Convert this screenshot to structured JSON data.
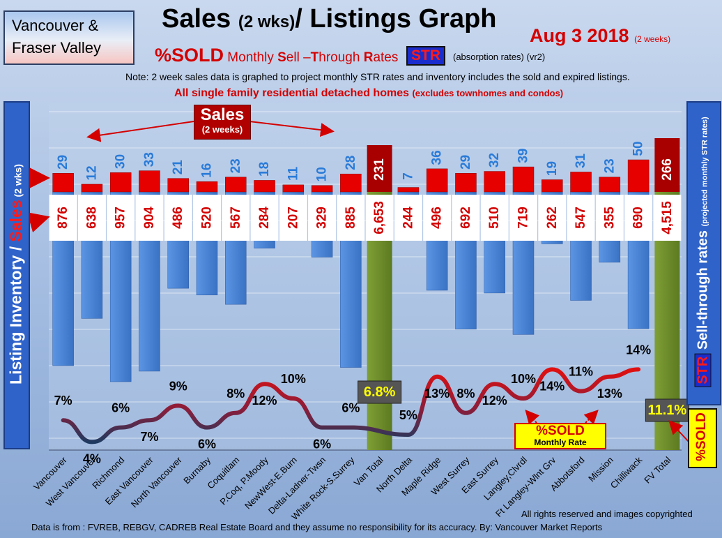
{
  "header": {
    "region_line1": "Vancouver &",
    "region_line2": "Fraser Valley",
    "title_main": "Sales ",
    "title_paren": "(2 wks)",
    "title_end": "/ Listings Graph",
    "date_main": "Aug 3 2018",
    "date_note": "(2 weeks)",
    "sub_sold": "%SOLD",
    "sub_monthly": " Monthly ",
    "sub_s": "S",
    "sub_ell": "ell –",
    "sub_t": "T",
    "sub_hrough": "hrough ",
    "sub_r": "R",
    "sub_ates": "ates",
    "str_tag": "STR",
    "absorption": "(absorption rates) (vr2)",
    "note": "Note: 2 week sales data is graphed to project monthly STR rates and inventory includes the sold and expired listings.",
    "scope_main": "All single family residential detached homes ",
    "scope_note": "(excludes townhomes and condos)"
  },
  "side_labels": {
    "left_a": "Listing Inventory / ",
    "left_b": "Sales",
    "left_c": " (2 wks)",
    "right_str": "STR",
    "right_a": " Sell-through rates ",
    "right_b": "(projected monthly STR rates)",
    "right_sold": "%SOLD"
  },
  "callouts": {
    "sales_big": "Sales",
    "sales_small": "(2 weeks)",
    "sold_big": "%SOLD",
    "sold_small": "Monthly Rate"
  },
  "footer": {
    "rights": "All rights reserved and  images copyrighted",
    "source": "Data is from : FVREB, REBGV, CADREB Real Estate Board and they assume no responsibility for its accuracy. By: Vancouver Market Reports"
  },
  "colors": {
    "sales_bar": "#e60000",
    "sales_total_bar": "#a80000",
    "listing_bar": "#4a86d8",
    "total_bar": "#6f8f2a",
    "str_line_low": "#1f3a60",
    "str_line_high": "#d81010",
    "str_blue_text": "#2a7bd8"
  },
  "chart_data": {
    "type": "bar",
    "categories": [
      "Vancouver",
      "West Vancouver",
      "Richmond",
      "East Vancouver",
      "North Vancouver",
      "Burnaby",
      "Coquitlam",
      "P.Coq, P.Moody",
      "NewWest-E.Burn",
      "Delta-Ladner-Twsn",
      "White Rock-S.Surrey",
      "Van Total",
      "North Delta",
      "Maple Ridge",
      "West Surrey",
      "East Surrey",
      "Langley,Clvrdl",
      "Ft Langley-Wlnt Grv",
      "Abbotsford",
      "Mission",
      "Chilliwack",
      "FV Total"
    ],
    "is_total": [
      false,
      false,
      false,
      false,
      false,
      false,
      false,
      false,
      false,
      false,
      false,
      true,
      false,
      false,
      false,
      false,
      false,
      false,
      false,
      false,
      false,
      true
    ],
    "sales": [
      29,
      12,
      30,
      33,
      21,
      16,
      23,
      18,
      11,
      10,
      28,
      231,
      7,
      36,
      29,
      32,
      39,
      19,
      31,
      23,
      50,
      266
    ],
    "listings": [
      876,
      638,
      957,
      904,
      486,
      520,
      567,
      284,
      207,
      329,
      885,
      6653,
      244,
      496,
      692,
      510,
      719,
      262,
      547,
      355,
      690,
      4515
    ],
    "sales_labels": [
      "29",
      "12",
      "30",
      "33",
      "21",
      "16",
      "23",
      "18",
      "11",
      "10",
      "28",
      "231",
      "7",
      "36",
      "29",
      "32",
      "39",
      "19",
      "31",
      "23",
      "50",
      "266"
    ],
    "listing_labels": [
      "876",
      "638",
      "957",
      "904",
      "486",
      "520",
      "567",
      "284",
      "207",
      "329",
      "885",
      "6,653",
      "244",
      "496",
      "692",
      "510",
      "719",
      "262",
      "547",
      "355",
      "690",
      "4,515"
    ],
    "str_percent": [
      7,
      4,
      6,
      7,
      9,
      6,
      8,
      12,
      10,
      6,
      6,
      6.8,
      5,
      13,
      8,
      12,
      10,
      14,
      11,
      13,
      14,
      11.1
    ],
    "str_labels": [
      "7%",
      "4%",
      "6%",
      "7%",
      "9%",
      "6%",
      "8%",
      "12%",
      "10%",
      "6%",
      "6%",
      "6.8%",
      "5%",
      "13%",
      "8%",
      "12%",
      "10%",
      "14%",
      "11%",
      "13%",
      "14%",
      "11.1%"
    ],
    "series": [
      {
        "name": "Sales",
        "values": [
          29,
          12,
          30,
          33,
          21,
          16,
          23,
          18,
          11,
          10,
          28,
          231,
          7,
          36,
          29,
          32,
          39,
          19,
          31,
          23,
          50,
          266
        ]
      },
      {
        "name": "Listing Inventory",
        "values": [
          876,
          638,
          957,
          904,
          486,
          520,
          567,
          284,
          207,
          329,
          885,
          6653,
          244,
          496,
          692,
          510,
          719,
          262,
          547,
          355,
          690,
          4515
        ]
      },
      {
        "name": "STR",
        "values": [
          7,
          4,
          6,
          7,
          9,
          6,
          8,
          12,
          10,
          6,
          6,
          6.8,
          5,
          13,
          8,
          12,
          10,
          14,
          11,
          13,
          14,
          11.1
        ]
      }
    ],
    "title": "Sales (2 wks)/ Listings Graph",
    "ylabel": "Listing Inventory / Sales (2 wks)",
    "y2label": "STR Sell-through rates",
    "grid": true
  }
}
